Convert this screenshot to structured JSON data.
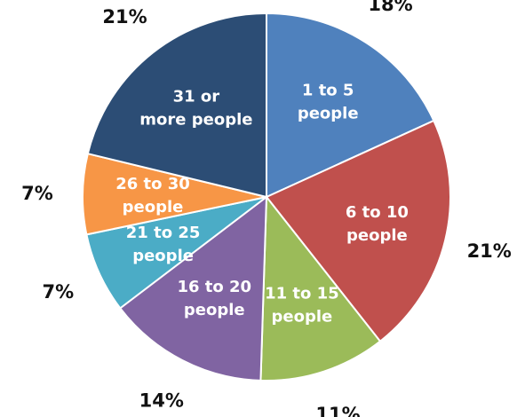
{
  "chart_data": {
    "type": "pie",
    "start": "12 o'clock",
    "direction": "clockwise",
    "slices": [
      {
        "label": [
          "1 to 5",
          "people"
        ],
        "value": 18,
        "value_label": "18%",
        "color": "#4F81BD"
      },
      {
        "label": [
          "6 to 10",
          "people"
        ],
        "value": 21,
        "value_label": "21%",
        "color": "#C0504D"
      },
      {
        "label": [
          "11 to 15",
          "people"
        ],
        "value": 11,
        "value_label": "11%",
        "color": "#9BBB59"
      },
      {
        "label": [
          "16 to 20",
          "people"
        ],
        "value": 14,
        "value_label": "14%",
        "color": "#8064A2"
      },
      {
        "label": [
          "21 to 25",
          "people"
        ],
        "value": 7,
        "value_label": "7%",
        "color": "#4BACC6"
      },
      {
        "label": [
          "26 to 30",
          "people"
        ],
        "value": 7,
        "value_label": "7%",
        "color": "#F79646"
      },
      {
        "label": [
          "31 or",
          "more people"
        ],
        "value": 21,
        "value_label": "21%",
        "color": "#2C4D75"
      }
    ]
  }
}
